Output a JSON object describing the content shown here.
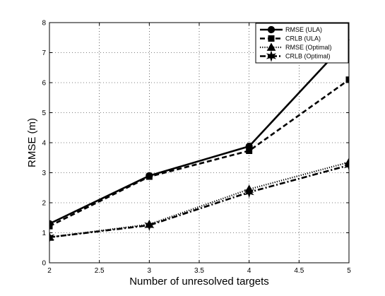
{
  "chart_data": {
    "type": "line",
    "title": "",
    "xlabel": "Number of unresolved targets",
    "ylabel": "RMSE (m)",
    "xlim": [
      2,
      5
    ],
    "ylim": [
      0,
      8
    ],
    "xticks": [
      "2",
      "2.5",
      "3",
      "3.5",
      "4",
      "4.5",
      "5"
    ],
    "yticks": [
      "0",
      "1",
      "2",
      "3",
      "4",
      "5",
      "6",
      "7",
      "8"
    ],
    "grid": true,
    "legend_position": "top-right",
    "x": [
      2,
      3,
      4,
      5
    ],
    "series": [
      {
        "name": "RMSE (ULA)",
        "values": [
          1.3,
          2.9,
          3.88,
          7.45
        ],
        "line": "solid",
        "marker": "circle"
      },
      {
        "name": "CRLB (ULA)",
        "values": [
          1.22,
          2.87,
          3.73,
          6.1
        ],
        "line": "dashed",
        "marker": "square"
      },
      {
        "name": "RMSE (Optimal)",
        "values": [
          0.85,
          1.28,
          2.45,
          3.35
        ],
        "line": "dotted",
        "marker": "triangle"
      },
      {
        "name": "CRLB (Optimal)",
        "values": [
          0.85,
          1.25,
          2.35,
          3.25
        ],
        "line": "dashdot",
        "marker": "star"
      }
    ]
  }
}
